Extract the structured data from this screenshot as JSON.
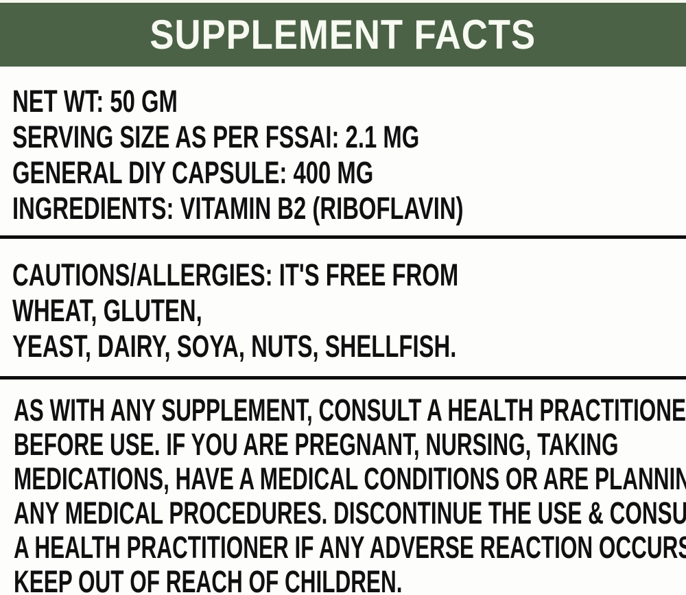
{
  "header": {
    "title": "SUPPLEMENT FACTS"
  },
  "info": {
    "lines": [
      "NET WT: 50 GM",
      "SERVING SIZE AS PER FSSAI: 2.1 MG",
      "GENERAL DIY CAPSULE: 400 MG",
      "INGREDIENTS: VITAMIN B2 (RIBOFLAVIN)"
    ]
  },
  "cautions": {
    "lines": [
      "CAUTIONS/ALLERGIES: IT'S FREE FROM",
      "WHEAT, GLUTEN,",
      "YEAST, DAIRY, SOYA, NUTS, SHELLFISH."
    ]
  },
  "disclaimer": {
    "lines": [
      "AS WITH ANY SUPPLEMENT, CONSULT A HEALTH PRACTITIONER",
      "BEFORE USE. IF YOU ARE PREGNANT, NURSING, TAKING",
      "MEDICATIONS, HAVE A MEDICAL CONDITIONS OR ARE PLANNING",
      "ANY MEDICAL PROCEDURES. DISCONTINUE THE USE & CONSULT",
      "A HEALTH PRACTITIONER IF ANY ADVERSE REACTION OCCURS.",
      "KEEP OUT OF REACH OF CHILDREN."
    ]
  },
  "colors": {
    "header_bg": "#4c6247",
    "header_text": "#f7faf1",
    "body_text": "#101010",
    "divider": "#0d0d0d",
    "page_bg": "#fdfdfc"
  }
}
